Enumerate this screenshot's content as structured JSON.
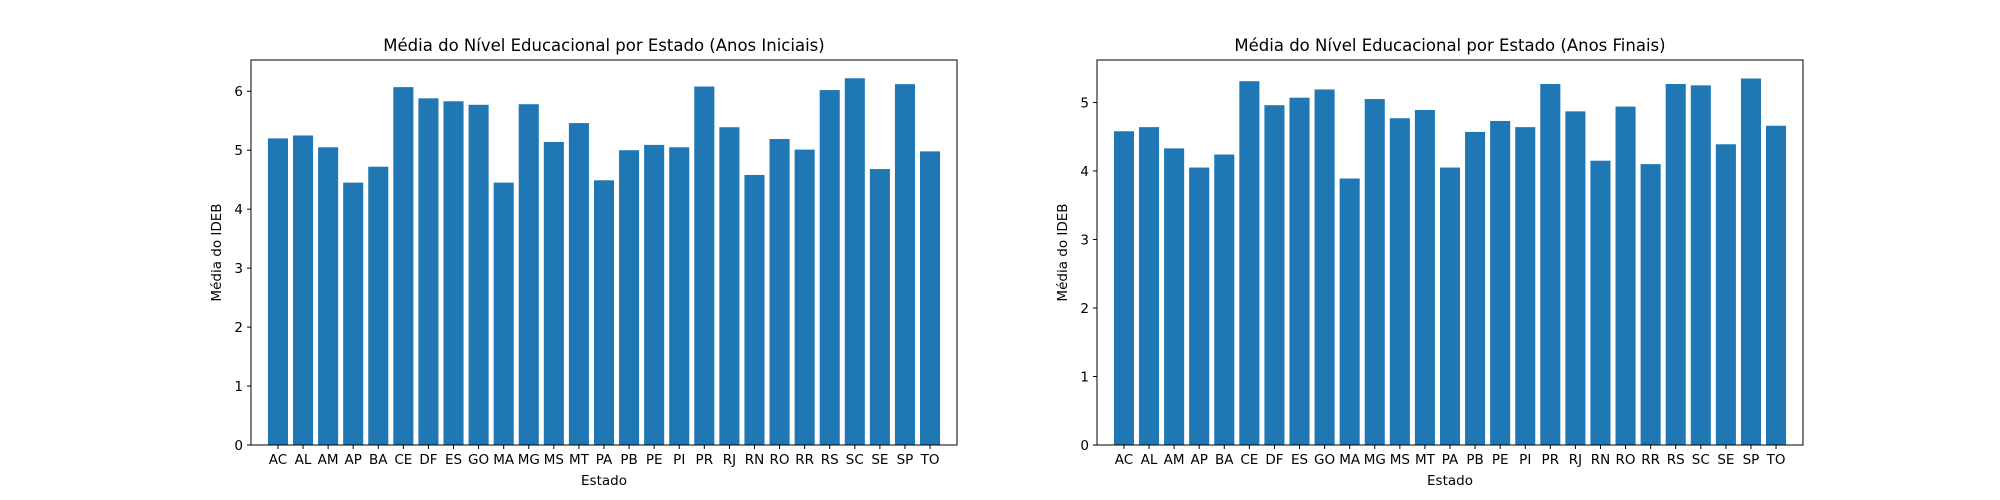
{
  "chart_data": [
    {
      "type": "bar",
      "title": "Média do Nível Educacional por Estado (Anos Iniciais)",
      "xlabel": "Estado",
      "ylabel": "Média do IDEB",
      "categories": [
        "AC",
        "AL",
        "AM",
        "AP",
        "BA",
        "CE",
        "DF",
        "ES",
        "GO",
        "MA",
        "MG",
        "MS",
        "MT",
        "PA",
        "PB",
        "PE",
        "PI",
        "PR",
        "RJ",
        "RN",
        "RO",
        "RR",
        "RS",
        "SC",
        "SE",
        "SP",
        "TO"
      ],
      "values": [
        5.2,
        5.25,
        5.05,
        4.45,
        4.72,
        6.07,
        5.88,
        5.83,
        5.77,
        4.45,
        5.78,
        5.14,
        5.46,
        4.49,
        5.0,
        5.09,
        5.05,
        6.08,
        5.39,
        4.58,
        5.19,
        5.01,
        6.02,
        6.22,
        4.68,
        6.12,
        4.98
      ],
      "yticks": [
        0,
        1,
        2,
        3,
        4,
        5,
        6
      ],
      "ylim": [
        0,
        6.53
      ],
      "grid": false,
      "color": "#1f77b4"
    },
    {
      "type": "bar",
      "title": "Média do Nível Educacional por Estado (Anos Finais)",
      "xlabel": "Estado",
      "ylabel": "Média do IDEB",
      "categories": [
        "AC",
        "AL",
        "AM",
        "AP",
        "BA",
        "CE",
        "DF",
        "ES",
        "GO",
        "MA",
        "MG",
        "MS",
        "MT",
        "PA",
        "PB",
        "PE",
        "PI",
        "PR",
        "RJ",
        "RN",
        "RO",
        "RR",
        "RS",
        "SC",
        "SE",
        "SP",
        "TO"
      ],
      "values": [
        4.58,
        4.64,
        4.33,
        4.05,
        4.24,
        5.31,
        4.96,
        5.07,
        5.19,
        3.89,
        5.05,
        4.77,
        4.89,
        4.05,
        4.57,
        4.73,
        4.64,
        5.27,
        4.87,
        4.15,
        4.94,
        4.1,
        5.27,
        5.25,
        4.39,
        5.35,
        4.66
      ],
      "yticks": [
        0,
        1,
        2,
        3,
        4,
        5
      ],
      "ylim": [
        0,
        5.62
      ],
      "grid": false,
      "color": "#1f77b4"
    }
  ]
}
